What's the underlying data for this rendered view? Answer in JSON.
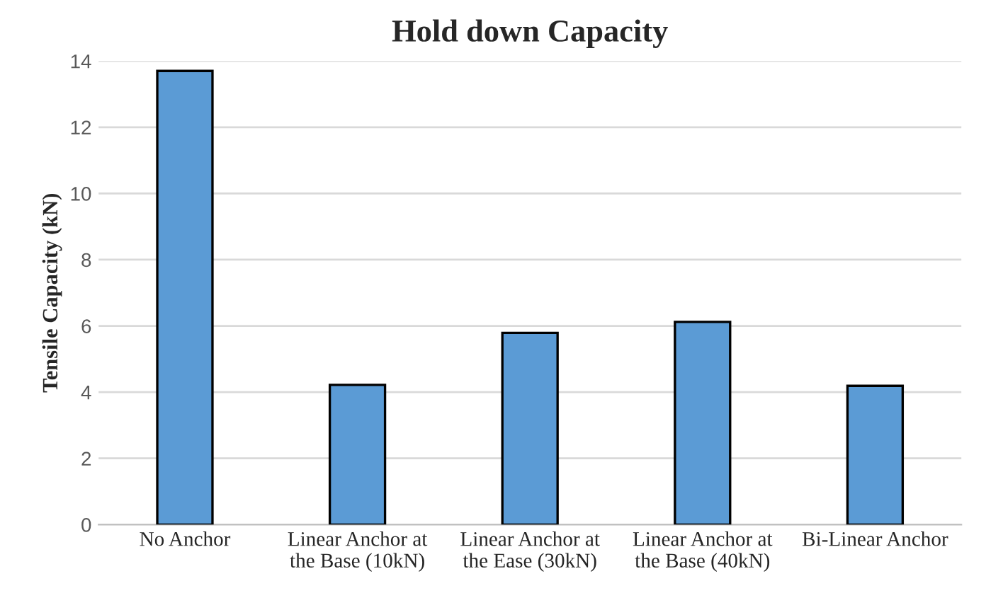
{
  "chart_data": {
    "type": "bar",
    "title": "Hold down Capacity",
    "ylabel": "Tensile Capacity (kN)",
    "categories": [
      "No Anchor",
      "Linear Anchor at\nthe Base (10kN)",
      "Linear Anchor at\nthe Ease (30kN)",
      "Linear Anchor at\nthe Base (40kN)",
      "Bi-Linear Anchor"
    ],
    "values": [
      13.7,
      4.22,
      5.79,
      6.12,
      4.19
    ],
    "color": "#5b9bd5",
    "ylim": [
      0,
      14
    ],
    "yticks": [
      0,
      2,
      4,
      6,
      8,
      10,
      12,
      14
    ],
    "grid": "y"
  }
}
